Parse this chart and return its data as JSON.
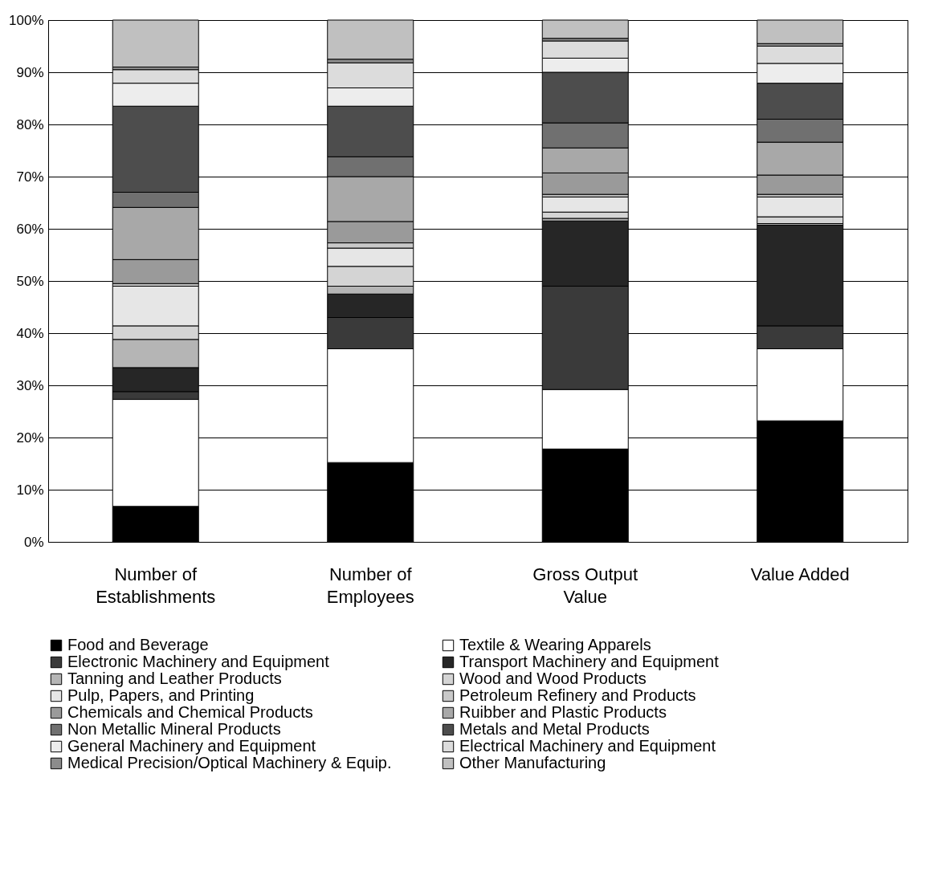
{
  "chart_data": {
    "type": "bar",
    "stacked": true,
    "categories": [
      "Number of Establishments",
      "Number of Employees",
      "Gross Output Value",
      "Value Added"
    ],
    "ylim": [
      0,
      100
    ],
    "yticks": [
      {
        "value": 0,
        "label": "0%"
      },
      {
        "value": 10,
        "label": "10%"
      },
      {
        "value": 20,
        "label": "20%"
      },
      {
        "value": 30,
        "label": "30%"
      },
      {
        "value": 40,
        "label": "40%"
      },
      {
        "value": 50,
        "label": "50%"
      },
      {
        "value": 60,
        "label": "60%"
      },
      {
        "value": 70,
        "label": "70%"
      },
      {
        "value": 80,
        "label": "80%"
      },
      {
        "value": 90,
        "label": "90%"
      },
      {
        "value": 100,
        "label": "100%"
      }
    ],
    "grid": "y",
    "legend": "bottom",
    "series": [
      {
        "name": "Food and Beverage",
        "color": "#000000",
        "values": [
          6.8,
          15.2,
          17.8,
          23.2
        ]
      },
      {
        "name": "Textile & Wearing Apparels",
        "color": "#ffffff",
        "values": [
          20.5,
          21.8,
          11.4,
          13.8
        ]
      },
      {
        "name": "Electronic Machinery and Equipment",
        "color": "#3a3a3a",
        "values": [
          1.5,
          6.0,
          19.8,
          4.4
        ]
      },
      {
        "name": "Transport Machinery and Equipment",
        "color": "#262626",
        "values": [
          4.6,
          4.5,
          12.5,
          19.3
        ]
      },
      {
        "name": "Tanning and Leather Products",
        "color": "#b5b5b5",
        "values": [
          5.4,
          1.5,
          0.5,
          0.3
        ]
      },
      {
        "name": "Wood and Wood Products",
        "color": "#d4d4d4",
        "values": [
          2.6,
          3.8,
          1.2,
          1.3
        ]
      },
      {
        "name": "Pulp, Papers, and Printing",
        "color": "#e6e6e6",
        "values": [
          7.6,
          3.5,
          2.9,
          3.8
        ]
      },
      {
        "name": "Petroleum Refinery and Products",
        "color": "#c8c8c8",
        "values": [
          0.5,
          1.0,
          0.5,
          0.5
        ]
      },
      {
        "name": "Chemicals and Chemical Products",
        "color": "#9a9a9a",
        "values": [
          4.6,
          4.1,
          4.1,
          3.7
        ]
      },
      {
        "name": "Ruibber and Plastic Products",
        "color": "#a8a8a8",
        "values": [
          10.0,
          8.6,
          4.8,
          6.3
        ]
      },
      {
        "name": "Non Metallic Mineral Products",
        "color": "#707070",
        "values": [
          2.9,
          3.8,
          4.8,
          4.4
        ]
      },
      {
        "name": "Metals and Metal Products",
        "color": "#4d4d4d",
        "values": [
          16.5,
          9.7,
          9.7,
          6.9
        ]
      },
      {
        "name": "General Machinery and Equipment",
        "color": "#ededed",
        "values": [
          4.4,
          3.5,
          2.7,
          3.8
        ]
      },
      {
        "name": "Electrical Machinery and Equipment",
        "color": "#dcdcdc",
        "values": [
          2.6,
          4.8,
          3.3,
          3.3
        ]
      },
      {
        "name": "Medical Precision/Optical Machinery & Equip.",
        "color": "#8c8c8c",
        "values": [
          0.5,
          0.7,
          0.5,
          0.5
        ]
      },
      {
        "name": "Other Manufacturing",
        "color": "#c0c0c0",
        "values": [
          9.0,
          7.5,
          3.5,
          4.5
        ]
      }
    ]
  }
}
